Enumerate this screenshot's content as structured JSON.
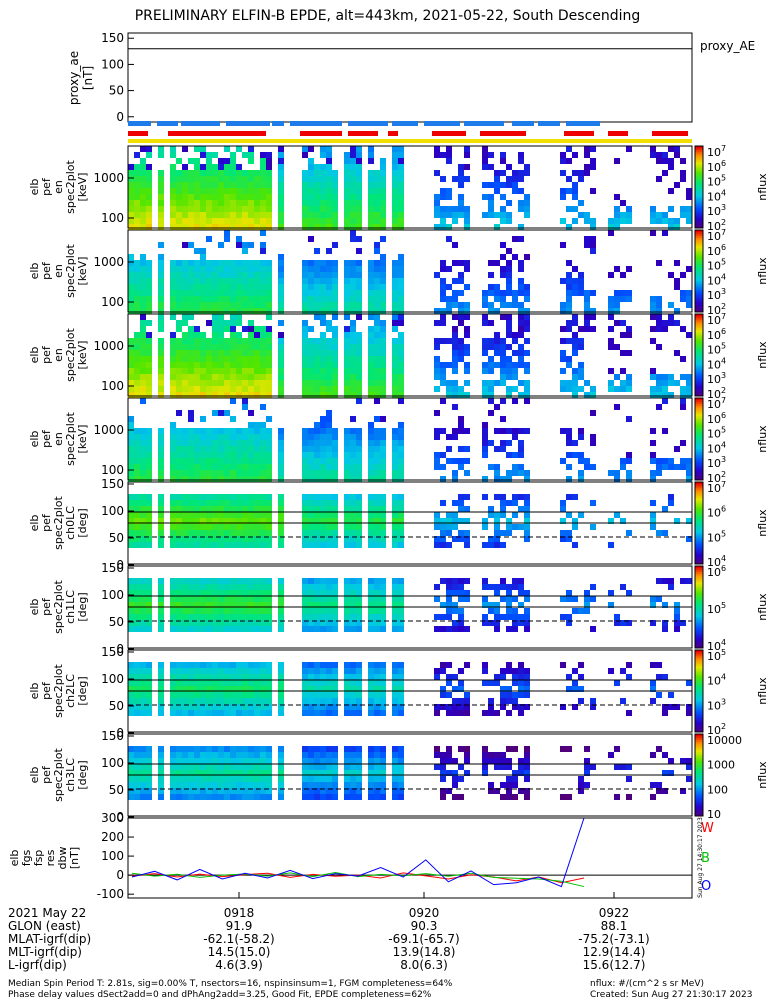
{
  "title": "PRELIMINARY ELFIN-B EPDE, alt=443km, 2021-05-22, South Descending",
  "proxy_legend": "proxy_AE",
  "panels": [
    {
      "ylabel": [
        "elb",
        "pef",
        "en",
        "spec2plot",
        "[keV]"
      ],
      "cb_label": "nflux",
      "cb_ticks": [
        "10^7",
        "10^6",
        "10^5",
        "10^4",
        "10^3",
        "10^2"
      ]
    },
    {
      "ylabel": [
        "elb",
        "pef",
        "en",
        "spec2plot",
        "[keV]"
      ],
      "cb_label": "nflux",
      "cb_ticks": [
        "10^7",
        "10^6",
        "10^5",
        "10^4",
        "10^3",
        "10^2"
      ]
    },
    {
      "ylabel": [
        "elb",
        "pef",
        "en",
        "spec2plot",
        "[keV]"
      ],
      "cb_label": "nflux",
      "cb_ticks": [
        "10^7",
        "10^6",
        "10^5",
        "10^4",
        "10^3",
        "10^2"
      ]
    },
    {
      "ylabel": [
        "elb",
        "pef",
        "en",
        "spec2plot",
        "[keV]"
      ],
      "cb_label": "nflux",
      "cb_ticks": [
        "10^7",
        "10^6",
        "10^5",
        "10^4",
        "10^3",
        "10^2"
      ]
    },
    {
      "ylabel": [
        "elb",
        "pef",
        "spec2plot",
        "ch0LC",
        "[deg]"
      ],
      "cb_label": "nflux",
      "cb_ticks": [
        "10^7",
        "10^6",
        "10^5",
        "10^4"
      ]
    },
    {
      "ylabel": [
        "elb",
        "pef",
        "spec2plot",
        "ch1LC",
        "[deg]"
      ],
      "cb_label": "nflux",
      "cb_ticks": [
        "10^6",
        "10^5",
        "10^4"
      ]
    },
    {
      "ylabel": [
        "elb",
        "pef",
        "spec2plot",
        "ch2LC",
        "[deg]"
      ],
      "cb_label": "nflux",
      "cb_ticks": [
        "10^5",
        "10^4",
        "10^3",
        "10^2"
      ]
    },
    {
      "ylabel": [
        "elb",
        "pef",
        "spec2plot",
        "ch3LC",
        "[deg]"
      ],
      "cb_label": "nflux",
      "cb_ticks": [
        "10000",
        "1000",
        "100",
        "10"
      ]
    }
  ],
  "en_ticks": [
    "1000",
    "100"
  ],
  "pa_ticks": [
    "150",
    "100",
    "50",
    "0"
  ],
  "colors": {
    "W": "#ff0000",
    "B": "#00c000",
    "O": "#0000ff"
  },
  "chart_data": {
    "type": "line",
    "x_ticks": [
      "0918",
      "0920",
      "0922"
    ],
    "proxy_ae": {
      "ylabel": [
        "proxy_ae",
        "[nT]"
      ],
      "yticks": [
        "150",
        "100",
        "50",
        "0"
      ],
      "ylim": [
        -10,
        160
      ]
    },
    "dbw": {
      "ylabel": [
        "elb",
        "fgs",
        "fsp",
        "res",
        "dbw",
        "[nT]"
      ],
      "yticks": [
        "300",
        "200",
        "100",
        "0",
        "-100"
      ],
      "ylim": [
        -120,
        300
      ],
      "series": [
        {
          "name": "W",
          "color": "#ff0000",
          "values": [
            -5,
            8,
            -10,
            5,
            -8,
            3,
            10,
            -12,
            4,
            -6,
            0,
            -15,
            12,
            -4,
            -20,
            2,
            -10,
            -30,
            -10,
            -40,
            -15
          ]
        },
        {
          "name": "B",
          "color": "#00c000",
          "values": [
            10,
            -5,
            5,
            -12,
            0,
            6,
            -5,
            12,
            -8,
            14,
            -8,
            4,
            -3,
            8,
            -6,
            10,
            -12,
            -16,
            -20,
            -32,
            -60
          ]
        },
        {
          "name": "O",
          "color": "#0000ff",
          "values": [
            -10,
            20,
            -25,
            30,
            -20,
            10,
            -15,
            25,
            -18,
            8,
            -5,
            40,
            -10,
            80,
            -35,
            22,
            -50,
            -40,
            -10,
            -60,
            300
          ]
        }
      ]
    }
  },
  "footer": {
    "labels": [
      "2021 May 22",
      "GLON (east)",
      "MLAT-igrf(dip)",
      "MLT-igrf(dip)",
      "L-igrf(dip)"
    ],
    "col1": [
      "0918",
      "91.9",
      "-62.1(-58.2)",
      "14.5(15.0)",
      "4.6(3.9)"
    ],
    "col2": [
      "0920",
      "90.3",
      "-69.1(-65.7)",
      "13.9(14.8)",
      "8.0(6.3)"
    ],
    "col3": [
      "0922",
      "88.1",
      "-75.2(-73.1)",
      "12.9(14.4)",
      "15.6(12.7)"
    ],
    "note1": "Median Spin Period T: 2.81s, sig=0.00% T, nsectors=16, nspinsinsum=1, FGM completeness=64%",
    "note2": "Phase delay values dSect2add=0 and dPhAng2add=3.25, Good Fit, EPDE completeness=62%",
    "units": "nflux: #/(cm^2 s sr MeV)",
    "created": "Created: Sun Aug 27 21:30:17 2023"
  },
  "side_stamp": "Sun Aug 27 14:30:17 2023"
}
